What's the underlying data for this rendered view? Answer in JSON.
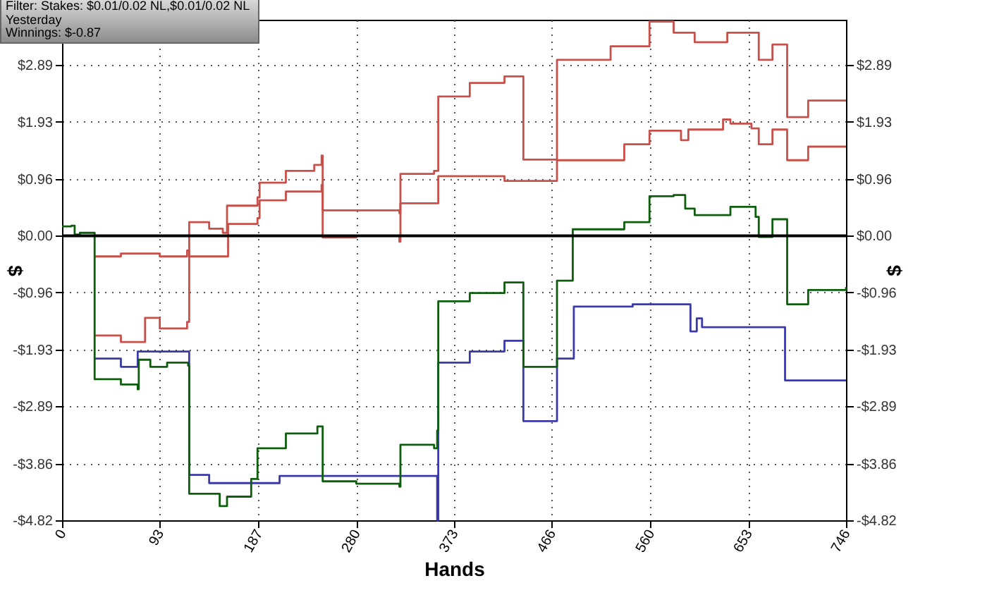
{
  "chart_data": {
    "type": "step",
    "xlabel": "Hands",
    "ylabel": "$",
    "y2label": "$",
    "annotations": [
      "Filter: Stakes: $0.01/0.02 NL,$0.01/0.02 NL",
      "Yesterday",
      "Winnings: $-0.87"
    ],
    "xlim": [
      0,
      746
    ],
    "xticks": [
      0,
      93,
      187,
      280,
      373,
      466,
      560,
      653,
      746
    ],
    "ylim": [
      -4.82,
      3.66
    ],
    "yticks": [
      {
        "value": -4.82,
        "label": "-$4.82"
      },
      {
        "value": -3.86,
        "label": "-$3.86"
      },
      {
        "value": -2.89,
        "label": "-$2.89"
      },
      {
        "value": -1.93,
        "label": "-$1.93"
      },
      {
        "value": -0.96,
        "label": "-$0.96"
      },
      {
        "value": 0,
        "label": "$0.00"
      },
      {
        "value": 0.96,
        "label": "$0.96"
      },
      {
        "value": 1.93,
        "label": "$1.93"
      },
      {
        "value": 2.89,
        "label": "$2.89"
      }
    ],
    "y2lim": [
      -4.82,
      3.66
    ],
    "y2ticks": [
      {
        "value": -4.82,
        "label": "-$4.82"
      },
      {
        "value": -3.86,
        "label": "-$3.86"
      },
      {
        "value": -2.89,
        "label": "-$2.89"
      },
      {
        "value": -1.93,
        "label": "-$1.93"
      },
      {
        "value": -0.96,
        "label": "-$0.96"
      },
      {
        "value": 0,
        "label": "$0.00"
      },
      {
        "value": 0.96,
        "label": "$0.96"
      },
      {
        "value": 1.93,
        "label": "$1.93"
      },
      {
        "value": 2.89,
        "label": "$2.89"
      }
    ],
    "grid": true,
    "ref_lines": [
      {
        "axis": "y",
        "value": 0,
        "color": "#000000"
      }
    ],
    "series": [
      {
        "color": "#c8504a",
        "x": [
          31,
          56,
          79,
          93,
          119,
          121,
          140,
          153,
          157,
          186,
          188,
          213,
          240,
          247,
          248,
          321,
          322,
          354,
          358,
          388,
          421,
          439,
          471,
          522,
          559,
          582,
          602,
          633,
          663,
          676,
          690,
          710,
          746
        ],
        "values": [
          -1.69,
          -1.8,
          -1.39,
          -1.57,
          -1.46,
          0.23,
          0.12,
          0.05,
          0.51,
          0.65,
          0.9,
          1.1,
          1.2,
          1.36,
          0.43,
          0.38,
          1.05,
          1.1,
          2.36,
          2.59,
          2.7,
          1.29,
          2.98,
          3.21,
          3.63,
          3.44,
          3.28,
          3.44,
          2.98,
          3.24,
          2.01,
          2.29,
          2.29
        ]
      },
      {
        "color": "#c8504a",
        "x": [
          31,
          56,
          93,
          119,
          121,
          158,
          186,
          188,
          213,
          247,
          248,
          280,
          321,
          322,
          358,
          421,
          471,
          535,
          559,
          589,
          596,
          629,
          636,
          656,
          663,
          676,
          690,
          710,
          746
        ],
        "values": [
          -0.35,
          -0.3,
          -0.35,
          -0.25,
          -0.35,
          0.2,
          0.3,
          0.6,
          0.75,
          0.86,
          -0.03,
          0.0,
          -0.1,
          0.55,
          1.01,
          0.93,
          1.28,
          1.55,
          1.78,
          1.62,
          1.8,
          1.97,
          1.9,
          1.82,
          1.55,
          1.8,
          1.28,
          1.51,
          1.51
        ]
      },
      {
        "color": "#3a3aa8",
        "x": [
          31,
          56,
          72,
          121,
          140,
          207,
          357,
          358,
          388,
          421,
          439,
          471,
          487,
          543,
          598,
          604,
          609,
          688,
          746
        ],
        "values": [
          -2.08,
          -2.22,
          -1.96,
          -4.05,
          -4.19,
          -4.07,
          -4.82,
          -2.15,
          -1.96,
          -1.78,
          -3.14,
          -2.08,
          -1.2,
          -1.16,
          -1.62,
          -1.4,
          -1.55,
          -2.45,
          -2.45
        ]
      },
      {
        "color": "#0d5e0d",
        "x": [
          0,
          9,
          12,
          17,
          30,
          31,
          56,
          72,
          73,
          84,
          100,
          120,
          121,
          150,
          157,
          180,
          186,
          213,
          243,
          248,
          280,
          321,
          322,
          354,
          357,
          358,
          388,
          421,
          439,
          471,
          486,
          535,
          559,
          582,
          593,
          602,
          636,
          660,
          663,
          676,
          690,
          710,
          740,
          746
        ],
        "values": [
          0.16,
          0.17,
          0.02,
          0.05,
          0.05,
          -2.43,
          -2.52,
          -2.6,
          -2.1,
          -2.22,
          -2.15,
          -2.2,
          -4.37,
          -4.58,
          -4.42,
          -4.12,
          -3.6,
          -3.35,
          -3.23,
          -4.16,
          -4.2,
          -4.25,
          -3.54,
          -3.6,
          -3.3,
          -1.11,
          -0.97,
          -0.79,
          -2.22,
          -0.76,
          0.11,
          0.23,
          0.67,
          0.69,
          0.46,
          0.35,
          0.49,
          0.32,
          -0.02,
          0.28,
          -1.16,
          -0.92,
          -0.92,
          -0.87
        ]
      }
    ]
  }
}
